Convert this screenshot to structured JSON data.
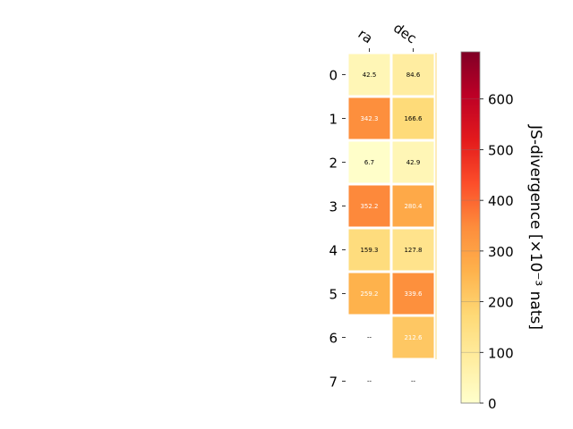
{
  "chart_data": {
    "type": "heatmap",
    "columns": [
      "ra",
      "dec"
    ],
    "rows": [
      "0",
      "1",
      "2",
      "3",
      "4",
      "5",
      "6",
      "7"
    ],
    "values": [
      [
        42.5,
        84.6
      ],
      [
        342.3,
        166.6
      ],
      [
        6.7,
        42.9
      ],
      [
        352.2,
        280.4
      ],
      [
        159.3,
        127.8
      ],
      [
        259.2,
        339.6
      ],
      [
        null,
        212.6
      ],
      [
        null,
        null
      ]
    ],
    "missing_label": "--",
    "colorbar": {
      "label": "JS-divergence [×10⁻³ nats]",
      "min": 0,
      "max": 693,
      "ticks": [
        0,
        100,
        200,
        300,
        400,
        500,
        600
      ],
      "colormap": "YlOrRd",
      "colors": [
        "#ffffcc",
        "#ffeda0",
        "#fed976",
        "#feb24c",
        "#fd8d3c",
        "#fc4e2a",
        "#e31a1c",
        "#bd0026",
        "#800026"
      ]
    },
    "cell_border_color": "#ffffff",
    "separator_color": "#fed976",
    "dark_text_threshold": 200
  }
}
